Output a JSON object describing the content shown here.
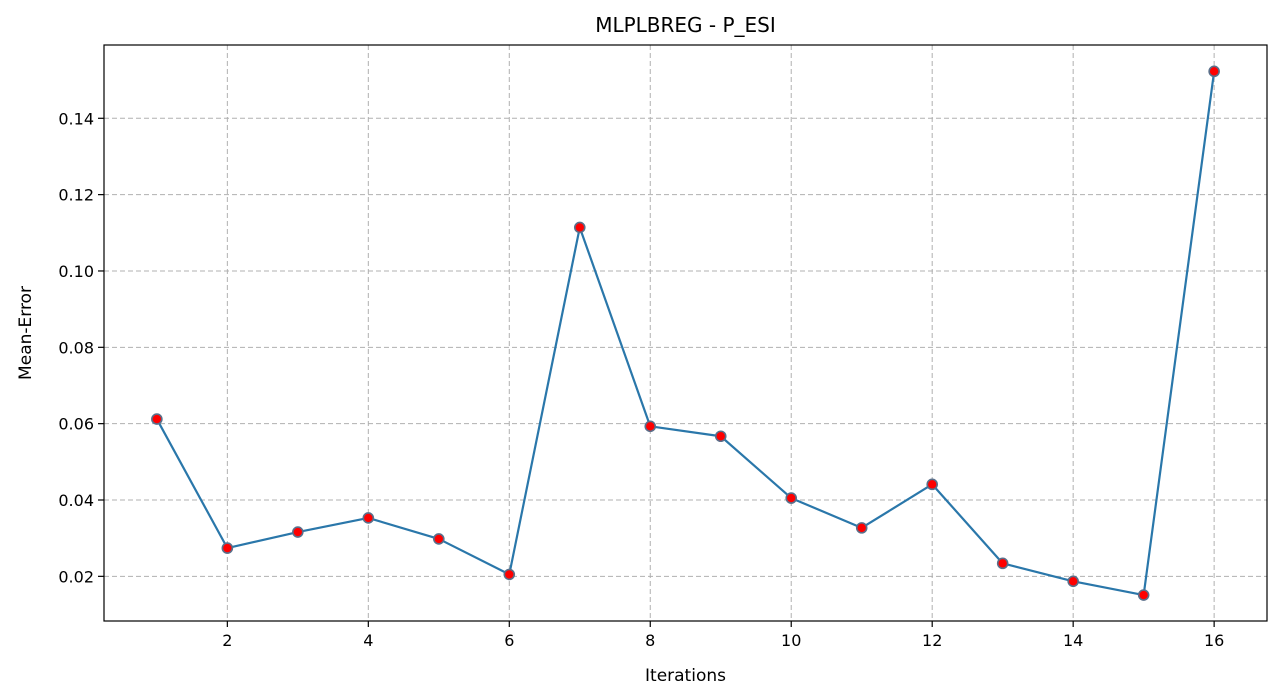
{
  "chart_data": {
    "type": "line",
    "title": "MLPLBREG - P_ESI",
    "xlabel": "Iterations",
    "ylabel": "Mean-Error",
    "x": [
      1,
      2,
      3,
      4,
      5,
      6,
      7,
      8,
      9,
      10,
      11,
      12,
      13,
      14,
      15,
      16
    ],
    "series": [
      {
        "values": [
          0.0612,
          0.0274,
          0.0316,
          0.0353,
          0.0298,
          0.0205,
          0.1114,
          0.0593,
          0.0567,
          0.0405,
          0.0327,
          0.0441,
          0.0234,
          0.0187,
          0.0151,
          0.1523
        ],
        "line_color": "#2a77aa",
        "marker_color": "#ff0000",
        "marker_edge_color": "#5a6f8a"
      }
    ],
    "xlim": [
      0.25,
      16.75
    ],
    "ylim": [
      0.0083,
      0.1592
    ],
    "xticks": [
      2,
      4,
      6,
      8,
      10,
      12,
      14,
      16
    ],
    "xtick_labels": [
      "2",
      "4",
      "6",
      "8",
      "10",
      "12",
      "14",
      "16"
    ],
    "yticks": [
      0.02,
      0.04,
      0.06,
      0.08,
      0.1,
      0.12,
      0.14
    ],
    "ytick_labels": [
      "0.02",
      "0.04",
      "0.06",
      "0.08",
      "0.10",
      "0.12",
      "0.14"
    ],
    "grid": true,
    "grid_style": "dashed",
    "grid_color": "#b0b0b0"
  }
}
